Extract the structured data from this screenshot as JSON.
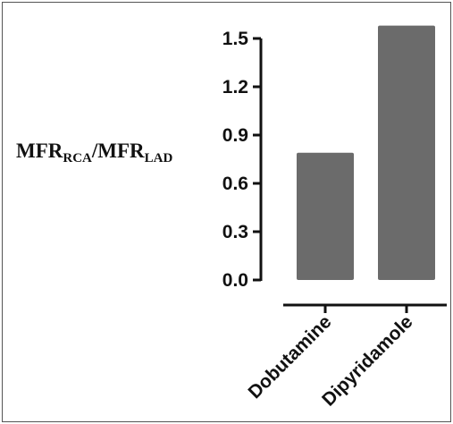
{
  "chart_data": {
    "type": "bar",
    "title": "",
    "xlabel": "",
    "ylabel": {
      "part1_main": "MFR",
      "part1_sub": "RCA",
      "separator": "/",
      "part2_main": "MFR",
      "part2_sub": "LAD"
    },
    "categories": [
      "Dobutamine",
      "Dipyridamole"
    ],
    "values": [
      0.79,
      1.58
    ],
    "ylim": [
      0.0,
      1.6
    ],
    "yticks": [
      "0.0",
      "0.3",
      "0.6",
      "0.9",
      "1.2",
      "1.5"
    ],
    "ytick_values": [
      0.0,
      0.3,
      0.6,
      0.9,
      1.2,
      1.5
    ],
    "grid": false,
    "legend": "none",
    "bar_color": "#6b6b6b",
    "axis_color": "#111111"
  }
}
